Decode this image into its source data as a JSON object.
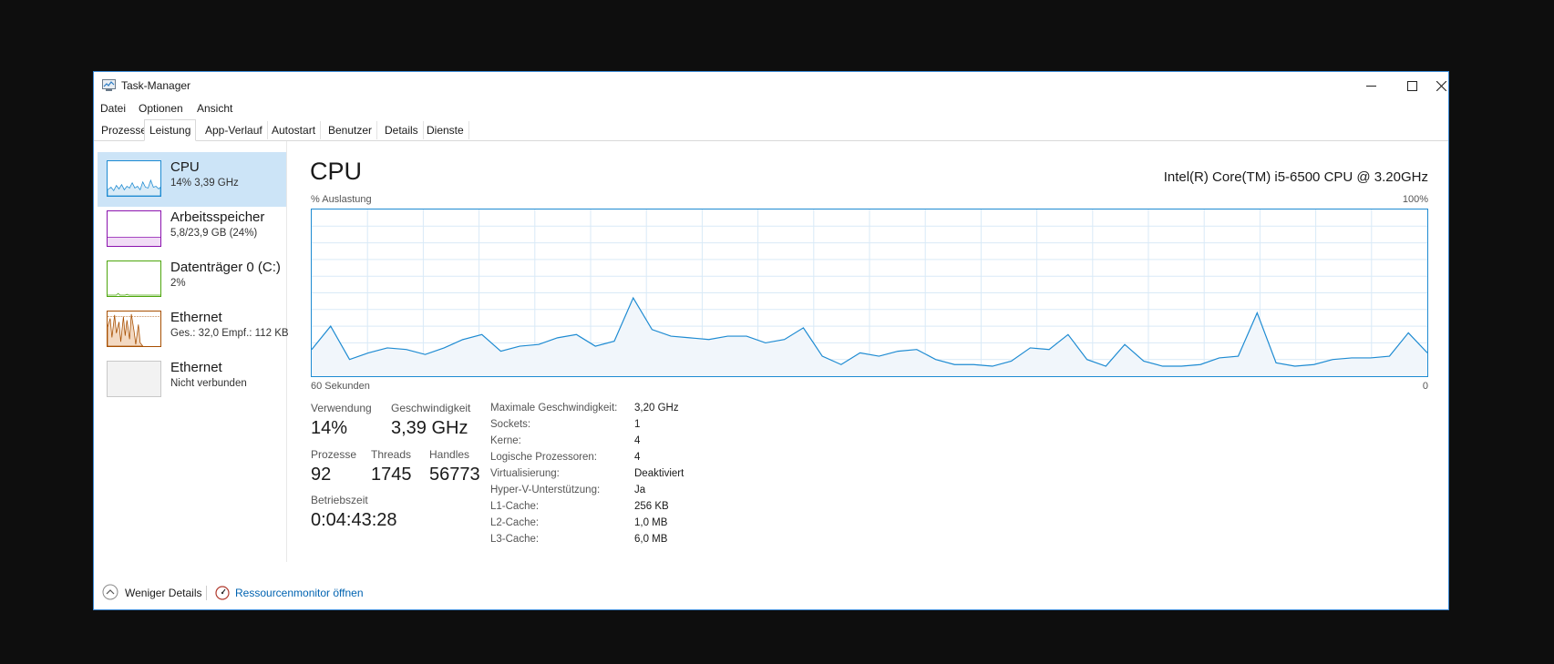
{
  "window": {
    "title": "Task-Manager",
    "accent": "#1e8bd2"
  },
  "menu": [
    "Datei",
    "Optionen",
    "Ansicht"
  ],
  "tabs": [
    "Prozesse",
    "Leistung",
    "App-Verlauf",
    "Autostart",
    "Benutzer",
    "Details",
    "Dienste"
  ],
  "active_tab": "Leistung",
  "sidebar": {
    "items": [
      {
        "name": "CPU",
        "sub": "14% 3,39 GHz",
        "color": "#1e8bd2"
      },
      {
        "name": "Arbeitsspeicher",
        "sub": "5,8/23,9 GB (24%)",
        "color": "#8b12ae"
      },
      {
        "name": "Datenträger 0 (C:)",
        "sub": "2%",
        "color": "#4da60c"
      },
      {
        "name": "Ethernet",
        "sub": "Ges.: 32,0  Empf.: 112 KB",
        "color": "#a74f01"
      },
      {
        "name": "Ethernet",
        "sub": "Nicht verbunden",
        "color": "#cccccc"
      }
    ]
  },
  "main": {
    "title": "CPU",
    "cpu_model": "Intel(R) Core(TM) i5-6500 CPU @ 3.20GHz",
    "graph_label_left": "% Auslastung",
    "graph_label_right": "100%",
    "graph_bottom_left": "60 Sekunden",
    "graph_bottom_right": "0"
  },
  "chart_data": {
    "type": "area",
    "ylim": [
      0,
      100
    ],
    "grid": true,
    "values": [
      16,
      30,
      10,
      14,
      17,
      16,
      13,
      17,
      22,
      25,
      15,
      18,
      19,
      23,
      25,
      18,
      21,
      47,
      28,
      24,
      23,
      22,
      24,
      24,
      20,
      22,
      29,
      12,
      7,
      14,
      12,
      15,
      16,
      10,
      7,
      7,
      6,
      9,
      17,
      16,
      25,
      10,
      6,
      19,
      9,
      6,
      6,
      7,
      11,
      12,
      38,
      8,
      6,
      7,
      10,
      11,
      11,
      12,
      26,
      14
    ]
  },
  "stats": {
    "usage_label": "Verwendung",
    "usage_value": "14%",
    "speed_label": "Geschwindigkeit",
    "speed_value": "3,39 GHz",
    "processes_label": "Prozesse",
    "processes_value": "92",
    "threads_label": "Threads",
    "threads_value": "1745",
    "handles_label": "Handles",
    "handles_value": "56773",
    "uptime_label": "Betriebszeit",
    "uptime_value": "0:04:43:28"
  },
  "info": [
    {
      "key": "Maximale Geschwindigkeit:",
      "value": "3,20 GHz"
    },
    {
      "key": "Sockets:",
      "value": "1"
    },
    {
      "key": "Kerne:",
      "value": "4"
    },
    {
      "key": "Logische Prozessoren:",
      "value": "4"
    },
    {
      "key": "Virtualisierung:",
      "value": "Deaktiviert"
    },
    {
      "key": "Hyper-V-Unterstützung:",
      "value": "Ja"
    },
    {
      "key": "L1-Cache:",
      "value": "256 KB"
    },
    {
      "key": "L2-Cache:",
      "value": "1,0 MB"
    },
    {
      "key": "L3-Cache:",
      "value": "6,0 MB"
    }
  ],
  "footer": {
    "less_details": "Weniger Details",
    "resource_monitor": "Ressourcenmonitor öffnen",
    "link_color": "#0063b1"
  }
}
